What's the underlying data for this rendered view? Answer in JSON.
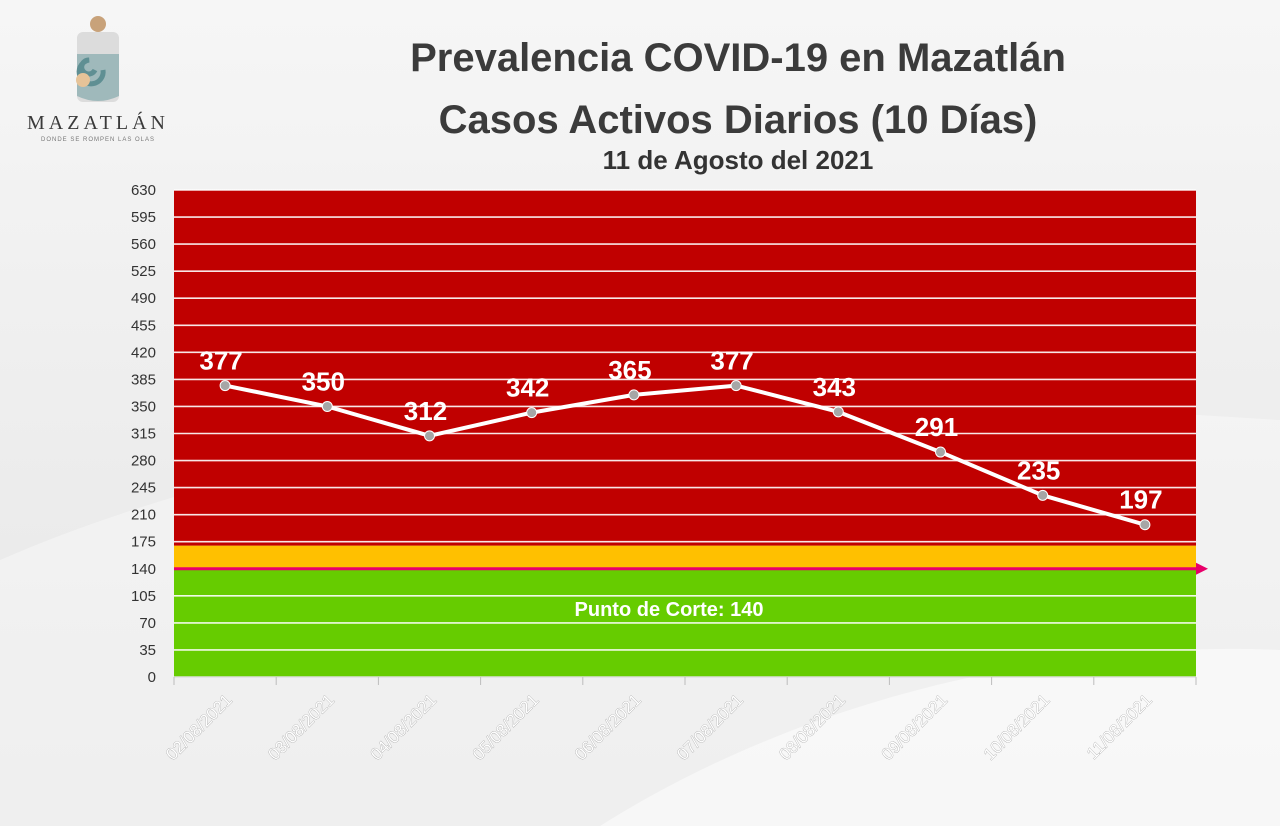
{
  "logo": {
    "name": "MAZATLÁN",
    "tagline": "DONDE SE ROMPEN LAS OLAS"
  },
  "title": {
    "line1": "Prevalencia COVID-19 en Mazatlán",
    "line2": "Casos Activos Diarios (10 Días)",
    "line3": "11 de Agosto del 2021"
  },
  "colors": {
    "red_zone": "#c00000",
    "orange_zone": "#ffc000",
    "green_zone": "#66cc00",
    "cut_line": "#e8006a",
    "series_line": "#ffffff",
    "marker": "#a6a6a6"
  },
  "chart_data": {
    "type": "line",
    "title": "Prevalencia COVID-19 en Mazatlán",
    "subtitle": "Casos Activos Diarios (10 Días)",
    "categories": [
      "02/08/2021",
      "03/08/2021",
      "04/08/2021",
      "05/08/2021",
      "06/08/2021",
      "07/08/2021",
      "08/08/2021",
      "09/08/2021",
      "10/08/2021",
      "11/08/2021"
    ],
    "series": [
      {
        "values": [
          377,
          350,
          312,
          342,
          365,
          377,
          343,
          291,
          235,
          197
        ]
      }
    ],
    "ylim": [
      0,
      630
    ],
    "yticks": [
      0,
      35,
      70,
      105,
      140,
      175,
      210,
      245,
      280,
      315,
      350,
      385,
      420,
      455,
      490,
      525,
      560,
      595,
      630
    ],
    "bands": [
      {
        "from": 0,
        "to": 140,
        "color": "#66cc00"
      },
      {
        "from": 140,
        "to": 170,
        "color": "#ffc000"
      },
      {
        "from": 170,
        "to": 630,
        "color": "#c00000"
      }
    ],
    "cut_line": {
      "value": 140,
      "label": "Punto de Corte: 140"
    },
    "grid": true,
    "xlabel": "",
    "ylabel": ""
  }
}
